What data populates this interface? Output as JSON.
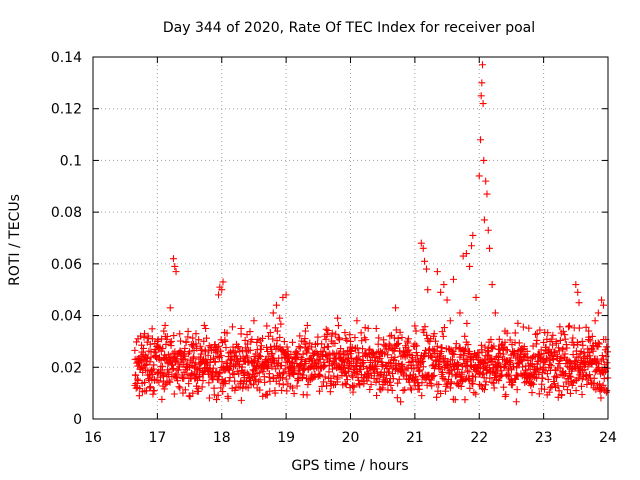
{
  "chart_data": {
    "type": "scatter",
    "title": "Day 344 of 2020, Rate Of TEC Index for receiver poal",
    "xlabel": "GPS time / hours",
    "ylabel": "ROTI / TECUs",
    "xlim": [
      16,
      24
    ],
    "ylim": [
      0,
      0.14
    ],
    "xticks": [
      16,
      17,
      18,
      19,
      20,
      21,
      22,
      23,
      24
    ],
    "yticks": [
      0,
      0.02,
      0.04,
      0.06,
      0.08,
      0.1,
      0.12,
      0.14
    ],
    "xtick_labels": [
      "16",
      "17",
      "18",
      "19",
      "20",
      "21",
      "22",
      "23",
      "24"
    ],
    "ytick_labels": [
      "0",
      "0.02",
      "0.04",
      "0.06",
      "0.08",
      "0.1",
      "0.12",
      "0.14"
    ],
    "grid": true,
    "marker": "plus",
    "color": "#ff0000",
    "series": [
      {
        "name": "ROTI",
        "points": [
          [
            16.65,
            0.013
          ],
          [
            16.7,
            0.031
          ],
          [
            16.72,
            0.009
          ],
          [
            16.75,
            0.02
          ],
          [
            16.8,
            0.033
          ],
          [
            16.85,
            0.017
          ],
          [
            16.9,
            0.026
          ],
          [
            16.95,
            0.011
          ],
          [
            17.0,
            0.03
          ],
          [
            17.05,
            0.019
          ],
          [
            17.1,
            0.034
          ],
          [
            17.15,
            0.014
          ],
          [
            17.2,
            0.043
          ],
          [
            17.25,
            0.062
          ],
          [
            17.27,
            0.059
          ],
          [
            17.29,
            0.057
          ],
          [
            17.35,
            0.012
          ],
          [
            17.4,
            0.021
          ],
          [
            17.5,
            0.026
          ],
          [
            17.55,
            0.01
          ],
          [
            17.6,
            0.033
          ],
          [
            17.7,
            0.018
          ],
          [
            17.75,
            0.035
          ],
          [
            17.8,
            0.014
          ],
          [
            17.9,
            0.022
          ],
          [
            17.95,
            0.048
          ],
          [
            17.97,
            0.051
          ],
          [
            18.0,
            0.05
          ],
          [
            18.02,
            0.053
          ],
          [
            18.05,
            0.03
          ],
          [
            18.1,
            0.008
          ],
          [
            18.2,
            0.024
          ],
          [
            18.3,
            0.035
          ],
          [
            18.35,
            0.016
          ],
          [
            18.4,
            0.029
          ],
          [
            18.5,
            0.038
          ],
          [
            18.55,
            0.012
          ],
          [
            18.6,
            0.027
          ],
          [
            18.7,
            0.036
          ],
          [
            18.8,
            0.041
          ],
          [
            18.85,
            0.044
          ],
          [
            18.9,
            0.039
          ],
          [
            18.95,
            0.047
          ],
          [
            19.0,
            0.048
          ],
          [
            19.05,
            0.02
          ],
          [
            19.1,
            0.012
          ],
          [
            19.2,
            0.028
          ],
          [
            19.3,
            0.034
          ],
          [
            19.4,
            0.017
          ],
          [
            19.5,
            0.025
          ],
          [
            19.6,
            0.032
          ],
          [
            19.7,
            0.013
          ],
          [
            19.8,
            0.039
          ],
          [
            19.9,
            0.022
          ],
          [
            20.0,
            0.03
          ],
          [
            20.1,
            0.038
          ],
          [
            20.2,
            0.016
          ],
          [
            20.3,
            0.027
          ],
          [
            20.4,
            0.035
          ],
          [
            20.5,
            0.012
          ],
          [
            20.6,
            0.029
          ],
          [
            20.7,
            0.043
          ],
          [
            20.8,
            0.019
          ],
          [
            20.9,
            0.031
          ],
          [
            21.0,
            0.036
          ],
          [
            21.05,
            0.014
          ],
          [
            21.1,
            0.068
          ],
          [
            21.13,
            0.066
          ],
          [
            21.15,
            0.061
          ],
          [
            21.18,
            0.058
          ],
          [
            21.2,
            0.05
          ],
          [
            21.3,
            0.033
          ],
          [
            21.35,
            0.057
          ],
          [
            21.4,
            0.049
          ],
          [
            21.45,
            0.052
          ],
          [
            21.5,
            0.046
          ],
          [
            21.55,
            0.038
          ],
          [
            21.6,
            0.054
          ],
          [
            21.7,
            0.041
          ],
          [
            21.75,
            0.063
          ],
          [
            21.8,
            0.064
          ],
          [
            21.85,
            0.059
          ],
          [
            21.88,
            0.067
          ],
          [
            21.9,
            0.071
          ],
          [
            21.95,
            0.047
          ],
          [
            22.0,
            0.094
          ],
          [
            22.02,
            0.108
          ],
          [
            22.03,
            0.125
          ],
          [
            22.04,
            0.13
          ],
          [
            22.05,
            0.137
          ],
          [
            22.06,
            0.122
          ],
          [
            22.07,
            0.1
          ],
          [
            22.08,
            0.077
          ],
          [
            22.1,
            0.092
          ],
          [
            22.12,
            0.087
          ],
          [
            22.14,
            0.073
          ],
          [
            22.16,
            0.066
          ],
          [
            22.2,
            0.052
          ],
          [
            22.25,
            0.041
          ],
          [
            22.3,
            0.027
          ],
          [
            22.4,
            0.034
          ],
          [
            22.5,
            0.019
          ],
          [
            22.6,
            0.037
          ],
          [
            22.7,
            0.028
          ],
          [
            22.8,
            0.013
          ],
          [
            22.9,
            0.033
          ],
          [
            23.0,
            0.022
          ],
          [
            23.1,
            0.03
          ],
          [
            23.2,
            0.016
          ],
          [
            23.3,
            0.027
          ],
          [
            23.4,
            0.036
          ],
          [
            23.5,
            0.052
          ],
          [
            23.53,
            0.049
          ],
          [
            23.55,
            0.045
          ],
          [
            23.6,
            0.03
          ],
          [
            23.7,
            0.034
          ],
          [
            23.75,
            0.014
          ],
          [
            23.8,
            0.038
          ],
          [
            23.85,
            0.041
          ],
          [
            23.9,
            0.046
          ],
          [
            23.93,
            0.044
          ],
          [
            23.95,
            0.021
          ],
          [
            23.98,
            0.011
          ]
        ]
      }
    ],
    "dense_band": {
      "x_start": 16.65,
      "x_end": 24.0,
      "typical_min": 0.005,
      "typical_max": 0.035,
      "median": 0.017
    }
  }
}
